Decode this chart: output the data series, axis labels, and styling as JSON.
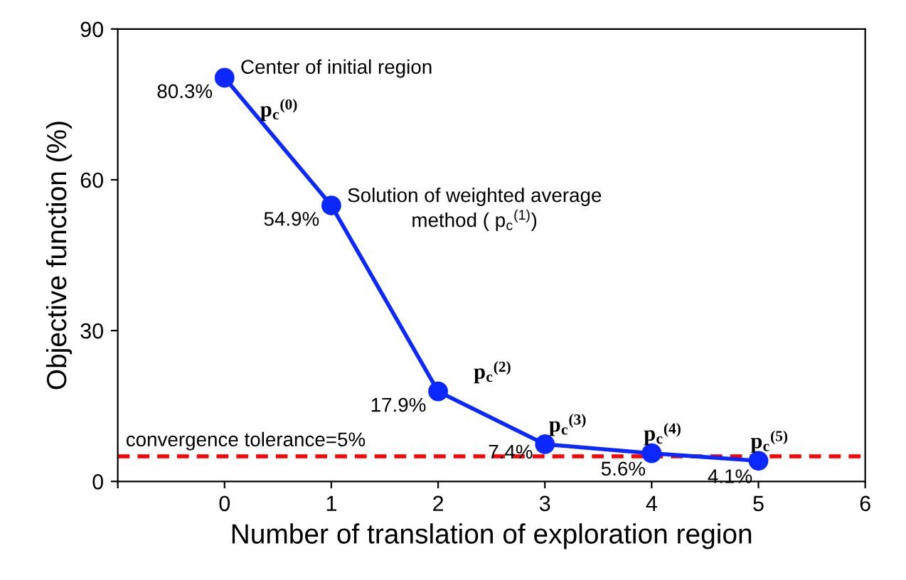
{
  "chart_data": {
    "type": "line",
    "xlabel": "Number of translation of exploration region",
    "ylabel": "Objective function (%)",
    "x": [
      0,
      1,
      2,
      3,
      4,
      5
    ],
    "series": [
      {
        "color": "#0a28ff",
        "values": [
          80.3,
          54.9,
          17.9,
          7.4,
          5.6,
          4.1
        ],
        "value_labels": [
          "80.3%",
          "54.9%",
          "17.9%",
          "7.4%",
          "5.6%",
          "4.1%"
        ]
      }
    ],
    "xlim": [
      -1,
      6
    ],
    "xticks": [
      {
        "value": -1,
        "label": null
      },
      0,
      1,
      2,
      3,
      4,
      5,
      6
    ],
    "ylim": [
      0,
      90
    ],
    "yticks": [
      0,
      30,
      60,
      90
    ],
    "marker": "circle",
    "line_style": "solid",
    "grid": false,
    "legend": false,
    "ref_lines": [
      {
        "axis": "y",
        "value": 5,
        "label": "convergence tolerance=5%",
        "color": "#ff0000",
        "line_style": "dashed"
      }
    ],
    "annotations": [
      {
        "text": "Center of initial region",
        "x": 0,
        "y": 80.3
      },
      {
        "text": "p$_{c}$$^{(0)}$",
        "x": 0,
        "y": 80.3
      },
      {
        "text": "Solution of weighted average\nmethod ( p$_{c}$$^{(1)}$)",
        "x": 1,
        "y": 54.9
      },
      {
        "text": "p$_{c}$$^{(2)}$",
        "x": 2,
        "y": 17.9
      },
      {
        "text": "p$_{c}$$^{(3)}$",
        "x": 3,
        "y": 7.4
      },
      {
        "text": "p$_{c}$$^{(4)}$",
        "x": 4,
        "y": 5.6
      },
      {
        "text": "p$_{c}$$^{(5)}$",
        "x": 5,
        "y": 4.1
      }
    ]
  }
}
